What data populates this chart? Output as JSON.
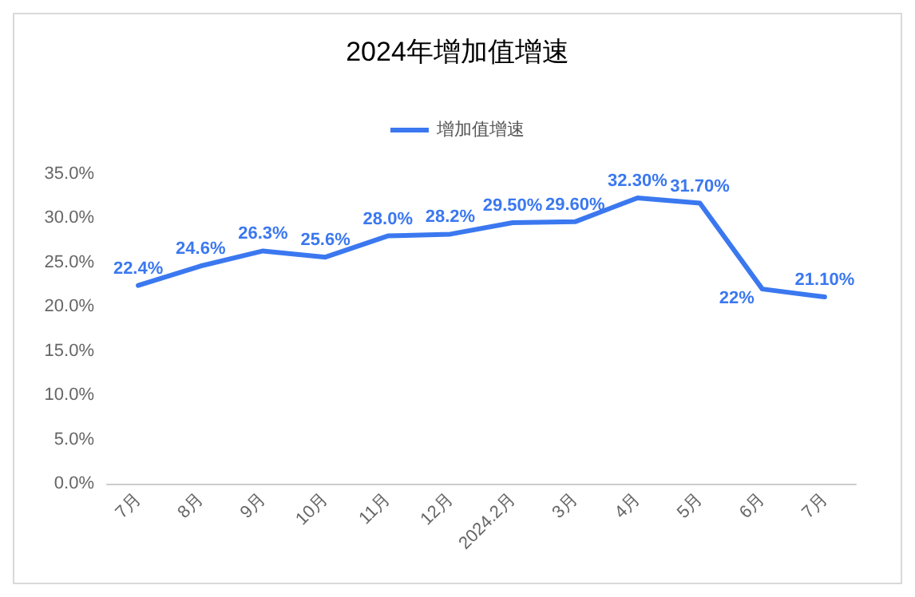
{
  "chart_data": {
    "type": "line",
    "title": "2024年增加值增速",
    "categories": [
      "7月",
      "8月",
      "9月",
      "10月",
      "11月",
      "12月",
      "2024.2月",
      "3月",
      "4月",
      "5月",
      "6月",
      "7月"
    ],
    "series": [
      {
        "name": "增加值增速",
        "color": "#3b78f0",
        "values": [
          22.4,
          24.6,
          26.3,
          25.6,
          28.0,
          28.2,
          29.5,
          29.6,
          32.3,
          31.7,
          22,
          21.1
        ],
        "value_labels": [
          "22.4%",
          "24.6%",
          "26.3%",
          "25.6%",
          "28.0%",
          "28.2%",
          "29.50%",
          "29.60%",
          "32.30%",
          "31.70%",
          "22%",
          "21.10%"
        ]
      }
    ],
    "ylim": [
      0,
      35
    ],
    "yticks": [
      {
        "value": 0,
        "label": "0.0%"
      },
      {
        "value": 5,
        "label": "5.0%"
      },
      {
        "value": 10,
        "label": "10.0%"
      },
      {
        "value": 15,
        "label": "15.0%"
      },
      {
        "value": 20,
        "label": "20.0%"
      },
      {
        "value": 25,
        "label": "25.0%"
      },
      {
        "value": 30,
        "label": "30.0%"
      },
      {
        "value": 35,
        "label": "35.0%"
      }
    ],
    "grid": false,
    "legend": "top",
    "marker": "none",
    "line_style": "solid"
  }
}
